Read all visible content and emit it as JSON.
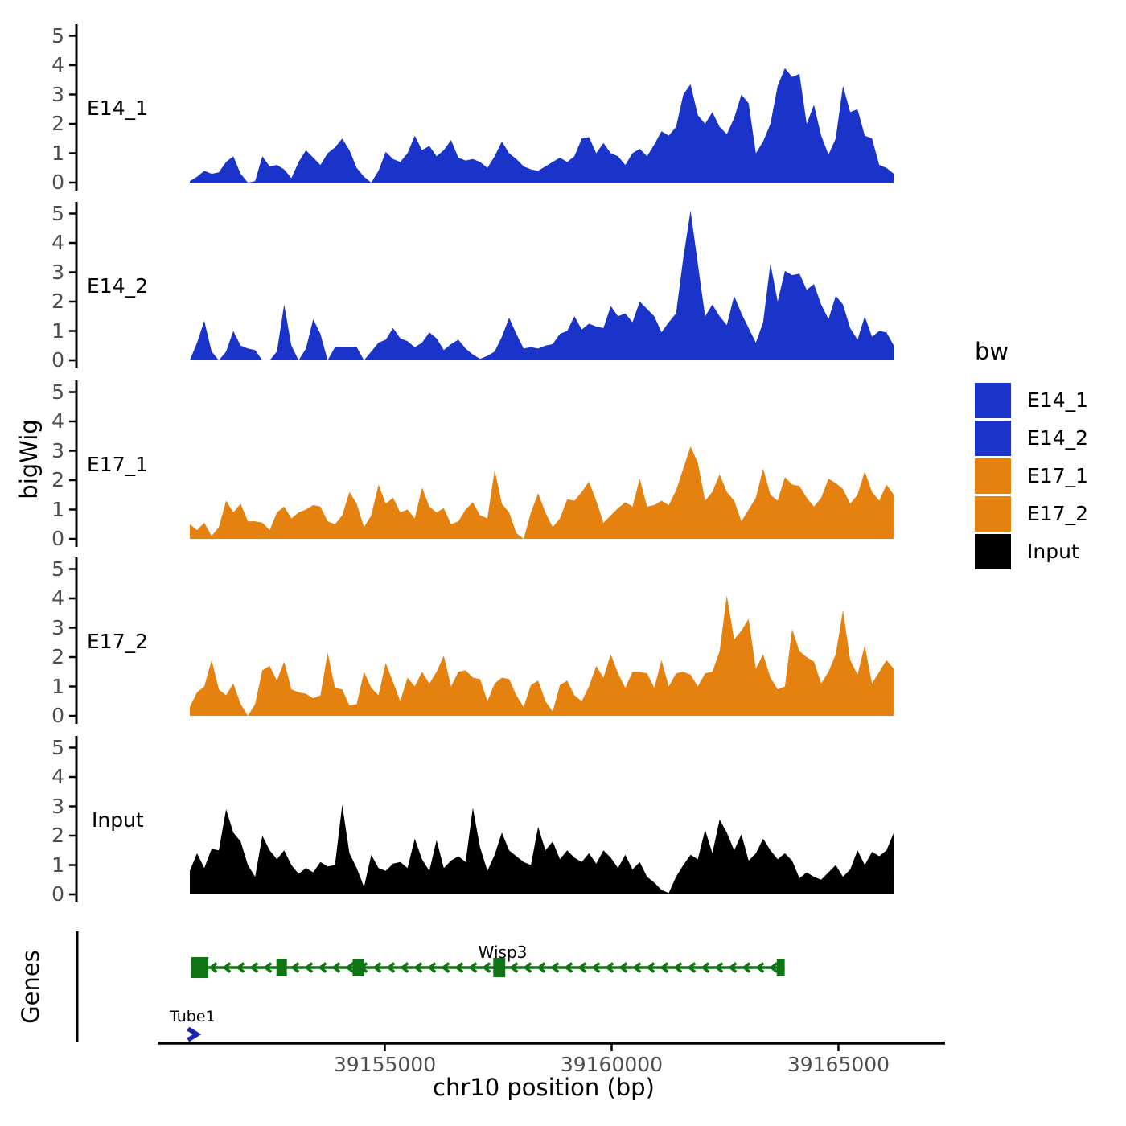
{
  "chart_data": {
    "type": "area",
    "title": "",
    "xlabel": "chr10 position (bp)",
    "ylabel": "bigWig",
    "genes_panel_label": "Genes",
    "legend_title": "bw",
    "x_domain": [
      39148200,
      39167350
    ],
    "x_axis_start": 39150000,
    "x_ticks": [
      39155000,
      39160000,
      39165000
    ],
    "y_ticks": [
      0,
      1,
      2,
      3,
      4,
      5
    ],
    "ylim": [
      0,
      5.2
    ],
    "grid": false,
    "legend_position": "right",
    "signal_x_start": 39150700,
    "signal_x_step": 160,
    "tracks": [
      {
        "name": "E14_1",
        "color": "#1a34c9",
        "values": [
          0.05,
          0.2,
          0.4,
          0.3,
          0.35,
          0.7,
          0.9,
          0.3,
          0,
          0.05,
          0.9,
          0.55,
          0.6,
          0.45,
          0.15,
          0.7,
          1.1,
          0.85,
          0.6,
          1,
          1.2,
          1.5,
          1.1,
          0.5,
          0.2,
          0,
          0.4,
          1.05,
          0.8,
          0.7,
          1,
          1.6,
          1.1,
          1.25,
          0.9,
          1.1,
          1.45,
          0.85,
          0.75,
          0.8,
          0.7,
          0.5,
          0.9,
          1.4,
          1,
          0.8,
          0.55,
          0.45,
          0.4,
          0.55,
          0.7,
          0.85,
          0.7,
          0.9,
          1.5,
          1.55,
          1,
          1.35,
          1,
          0.9,
          0.6,
          1,
          1.15,
          0.9,
          1.3,
          1.75,
          1.6,
          1.9,
          3,
          3.35,
          2.3,
          2,
          2.4,
          1.9,
          1.65,
          2.2,
          3,
          2.7,
          1,
          1.4,
          2,
          3.3,
          3.9,
          3.6,
          3.7,
          2,
          2.65,
          1.6,
          0.95,
          1.5,
          3.3,
          2.4,
          2.5,
          1.6,
          1.5,
          0.6,
          0.5,
          0.3
        ]
      },
      {
        "name": "E14_2",
        "color": "#1a34c9",
        "values": [
          0,
          0.6,
          1.35,
          0.3,
          0,
          0.3,
          1,
          0.5,
          0.4,
          0.35,
          0,
          0,
          0.3,
          1.9,
          0.5,
          0,
          0.4,
          1.4,
          0.9,
          0,
          0.45,
          0.45,
          0.45,
          0.45,
          0,
          0.3,
          0.6,
          0.7,
          1.1,
          0.75,
          0.65,
          0.45,
          0.6,
          0.95,
          0.75,
          0.35,
          0.55,
          0.7,
          0.4,
          0.2,
          0.05,
          0.15,
          0.3,
          0.8,
          1.45,
          0.9,
          0.4,
          0.45,
          0.4,
          0.5,
          0.55,
          0.9,
          1,
          1.5,
          1.05,
          1.25,
          1.15,
          1.1,
          1.85,
          1.5,
          1.6,
          1.3,
          2,
          1.75,
          1.5,
          0.95,
          1.3,
          1.6,
          3.5,
          5.1,
          3.3,
          1.5,
          1.9,
          1.5,
          1.2,
          2.2,
          1.6,
          1.1,
          0.6,
          1.3,
          3.3,
          2,
          3.05,
          2.9,
          2.95,
          2.4,
          2.6,
          1.9,
          1.4,
          2.2,
          1.9,
          1.1,
          0.7,
          1.5,
          0.8,
          1,
          0.95,
          0.5
        ]
      },
      {
        "name": "E17_1",
        "color": "#e5810e",
        "values": [
          0.5,
          0.3,
          0.55,
          0.1,
          0.4,
          1.3,
          0.9,
          1.2,
          0.6,
          0.6,
          0.55,
          0.3,
          0.9,
          1.1,
          0.7,
          0.9,
          1,
          1.15,
          1.1,
          0.6,
          0.5,
          0.8,
          1.6,
          1.2,
          0.4,
          0.8,
          1.85,
          1.2,
          1.4,
          0.9,
          1,
          0.7,
          1.75,
          1.1,
          0.9,
          1.05,
          0.5,
          0.6,
          1,
          1.25,
          0.8,
          0.7,
          2.35,
          1.2,
          0.9,
          0.2,
          0,
          0.9,
          1.55,
          0.9,
          0.4,
          0.7,
          1.35,
          1.3,
          1.6,
          1.95,
          1.3,
          0.55,
          0.8,
          1.05,
          1.25,
          1.1,
          2.05,
          1.1,
          1.15,
          1.3,
          1.15,
          1.65,
          2.4,
          3.15,
          2.6,
          1.3,
          1.6,
          2.2,
          1.6,
          1.3,
          0.6,
          1,
          1.4,
          2.4,
          1.5,
          1.3,
          2.1,
          1.85,
          1.8,
          1.4,
          1.1,
          1.4,
          2.05,
          1.9,
          1.7,
          1.2,
          1.5,
          2.3,
          1.6,
          1.3,
          1.85,
          1.5
        ]
      },
      {
        "name": "E17_2",
        "color": "#e5810e",
        "values": [
          0.3,
          0.8,
          1,
          1.9,
          0.9,
          0.7,
          1.1,
          0.4,
          0,
          0.4,
          1.55,
          1.7,
          1.2,
          1.85,
          0.9,
          0.8,
          0.75,
          0.6,
          0.7,
          2.15,
          0.95,
          0.9,
          0.35,
          0.4,
          1.5,
          0.95,
          0.7,
          1.8,
          1.15,
          0.5,
          1.3,
          1,
          1.5,
          1.1,
          1.5,
          2.05,
          1,
          1.5,
          1.55,
          1.3,
          1.25,
          0.5,
          1.1,
          1.3,
          1.25,
          0.7,
          0.3,
          1.05,
          1.2,
          0.5,
          0.15,
          1.05,
          1.2,
          0.7,
          0.5,
          1,
          1.7,
          1.3,
          2.1,
          1.45,
          0.95,
          1.5,
          1.5,
          1.45,
          0.95,
          1.9,
          1,
          1.45,
          1.5,
          1.4,
          1,
          1.45,
          1.5,
          2.2,
          4.1,
          2.6,
          2.9,
          3.3,
          1.6,
          2.1,
          1.3,
          0.9,
          1,
          2.95,
          2.2,
          2,
          1.85,
          1.1,
          1.5,
          2.1,
          3.6,
          1.9,
          1.4,
          2.4,
          1.1,
          1.5,
          1.9,
          1.6
        ]
      },
      {
        "name": "Input",
        "color": "#000000",
        "values": [
          0.8,
          1.4,
          0.9,
          1.55,
          1.5,
          2.9,
          2.1,
          1.8,
          1,
          0.6,
          2,
          1.5,
          1.2,
          1.5,
          1,
          0.7,
          0.9,
          0.75,
          1.1,
          0.95,
          1,
          3.05,
          1.4,
          0.9,
          0.25,
          1.35,
          0.9,
          0.8,
          1.05,
          1.1,
          0.9,
          1.9,
          1.2,
          0.8,
          1.85,
          0.9,
          1.15,
          1.3,
          1.1,
          2.95,
          1.6,
          0.8,
          1.35,
          2.1,
          1.5,
          1.3,
          1.1,
          1,
          2.3,
          1.5,
          1.8,
          1.2,
          1.5,
          1.25,
          1.1,
          1.4,
          1.05,
          1.5,
          1.25,
          0.9,
          1.35,
          0.85,
          1.1,
          0.6,
          0.4,
          0.15,
          0.05,
          0.6,
          1,
          1.35,
          1.2,
          2.2,
          1.4,
          2.55,
          2.1,
          1.5,
          2.05,
          1.15,
          1.4,
          1.9,
          1.5,
          1.2,
          1.4,
          1.15,
          0.55,
          0.75,
          0.6,
          0.5,
          0.75,
          1,
          0.6,
          0.85,
          1.5,
          1,
          1.45,
          1.3,
          1.5,
          2.1
        ]
      }
    ],
    "genes": [
      {
        "name": "Wisp3",
        "color": "#0f7514",
        "strand": "-",
        "start": 39150730,
        "end": 39163815,
        "label_x": 39157400,
        "exons": [
          [
            39150730,
            39151110,
            26
          ],
          [
            39152610,
            39152840,
            22
          ],
          [
            39154290,
            39154540,
            22
          ],
          [
            39157390,
            39157655,
            24
          ],
          [
            39163640,
            39163815,
            22
          ]
        ]
      },
      {
        "name": "Tube1",
        "color": "#1b24ae",
        "strand": "+",
        "start": 39150660,
        "end": 39150860
      }
    ]
  }
}
